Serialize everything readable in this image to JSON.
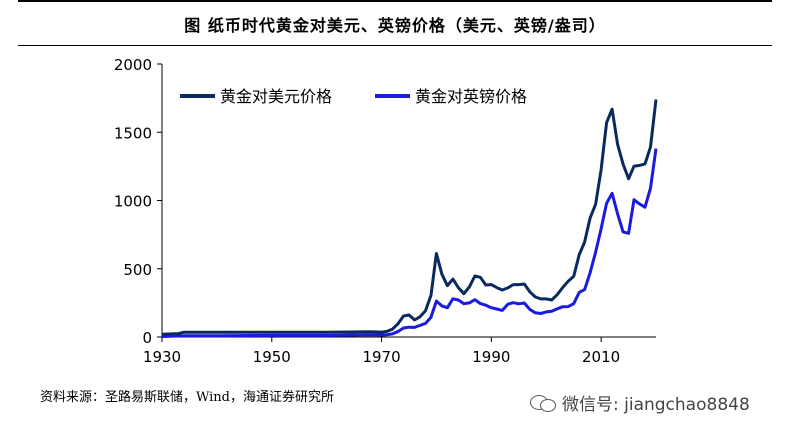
{
  "header": {
    "title": "图  纸币时代黄金对美元、英镑价格（美元、英镑/盎司）"
  },
  "source": "资料来源：圣路易斯联储，Wind，海通证券研究所",
  "watermark": {
    "text": "微信号: jiangchao8848",
    "icon": "wechat-icon"
  },
  "chart_data": {
    "type": "line",
    "title": "纸币时代黄金对美元、英镑价格（美元、英镑/盎司）",
    "xlabel": "",
    "ylabel": "",
    "xlim": [
      1930,
      2020
    ],
    "ylim": [
      0,
      2000
    ],
    "x_ticks": [
      1930,
      1950,
      1970,
      1990,
      2010
    ],
    "y_ticks": [
      0,
      500,
      1000,
      1500,
      2000
    ],
    "grid": false,
    "legend_position": "top-left",
    "series": [
      {
        "name": "黄金对美元价格",
        "color": "#0a2a5e",
        "points": [
          [
            1930,
            20
          ],
          [
            1933,
            25
          ],
          [
            1934,
            35
          ],
          [
            1940,
            35
          ],
          [
            1950,
            35
          ],
          [
            1960,
            35
          ],
          [
            1968,
            39
          ],
          [
            1970,
            36
          ],
          [
            1971,
            41
          ],
          [
            1972,
            58
          ],
          [
            1973,
            97
          ],
          [
            1974,
            154
          ],
          [
            1975,
            161
          ],
          [
            1976,
            125
          ],
          [
            1977,
            148
          ],
          [
            1978,
            193
          ],
          [
            1979,
            306
          ],
          [
            1980,
            612
          ],
          [
            1981,
            460
          ],
          [
            1982,
            376
          ],
          [
            1983,
            424
          ],
          [
            1984,
            361
          ],
          [
            1985,
            317
          ],
          [
            1986,
            368
          ],
          [
            1987,
            447
          ],
          [
            1988,
            437
          ],
          [
            1989,
            381
          ],
          [
            1990,
            384
          ],
          [
            1991,
            362
          ],
          [
            1992,
            344
          ],
          [
            1993,
            360
          ],
          [
            1994,
            384
          ],
          [
            1995,
            384
          ],
          [
            1996,
            388
          ],
          [
            1997,
            331
          ],
          [
            1998,
            294
          ],
          [
            1999,
            279
          ],
          [
            2000,
            279
          ],
          [
            2001,
            271
          ],
          [
            2002,
            310
          ],
          [
            2003,
            363
          ],
          [
            2004,
            409
          ],
          [
            2005,
            444
          ],
          [
            2006,
            603
          ],
          [
            2007,
            695
          ],
          [
            2008,
            872
          ],
          [
            2009,
            972
          ],
          [
            2010,
            1225
          ],
          [
            2011,
            1571
          ],
          [
            2012,
            1669
          ],
          [
            2013,
            1411
          ],
          [
            2014,
            1266
          ],
          [
            2015,
            1160
          ],
          [
            2016,
            1251
          ],
          [
            2017,
            1257
          ],
          [
            2018,
            1268
          ],
          [
            2019,
            1393
          ],
          [
            2020,
            1740
          ]
        ]
      },
      {
        "name": "黄金对英镑价格",
        "color": "#1a1ae0",
        "points": [
          [
            1930,
            4
          ],
          [
            1933,
            7
          ],
          [
            1934,
            9
          ],
          [
            1940,
            9
          ],
          [
            1950,
            12
          ],
          [
            1960,
            12
          ],
          [
            1968,
            16
          ],
          [
            1970,
            15
          ],
          [
            1971,
            17
          ],
          [
            1972,
            23
          ],
          [
            1973,
            40
          ],
          [
            1974,
            66
          ],
          [
            1975,
            72
          ],
          [
            1976,
            70
          ],
          [
            1977,
            85
          ],
          [
            1978,
            100
          ],
          [
            1979,
            145
          ],
          [
            1980,
            263
          ],
          [
            1981,
            228
          ],
          [
            1982,
            215
          ],
          [
            1983,
            280
          ],
          [
            1984,
            271
          ],
          [
            1985,
            244
          ],
          [
            1986,
            250
          ],
          [
            1987,
            273
          ],
          [
            1988,
            245
          ],
          [
            1989,
            233
          ],
          [
            1990,
            215
          ],
          [
            1991,
            205
          ],
          [
            1992,
            195
          ],
          [
            1993,
            240
          ],
          [
            1994,
            251
          ],
          [
            1995,
            243
          ],
          [
            1996,
            249
          ],
          [
            1997,
            202
          ],
          [
            1998,
            177
          ],
          [
            1999,
            172
          ],
          [
            2000,
            184
          ],
          [
            2001,
            188
          ],
          [
            2002,
            206
          ],
          [
            2003,
            222
          ],
          [
            2004,
            223
          ],
          [
            2005,
            244
          ],
          [
            2006,
            327
          ],
          [
            2007,
            347
          ],
          [
            2008,
            470
          ],
          [
            2009,
            621
          ],
          [
            2010,
            793
          ],
          [
            2011,
            980
          ],
          [
            2012,
            1053
          ],
          [
            2013,
            902
          ],
          [
            2014,
            770
          ],
          [
            2015,
            760
          ],
          [
            2016,
            1006
          ],
          [
            2017,
            975
          ],
          [
            2018,
            951
          ],
          [
            2019,
            1090
          ],
          [
            2020,
            1380
          ]
        ]
      }
    ]
  }
}
